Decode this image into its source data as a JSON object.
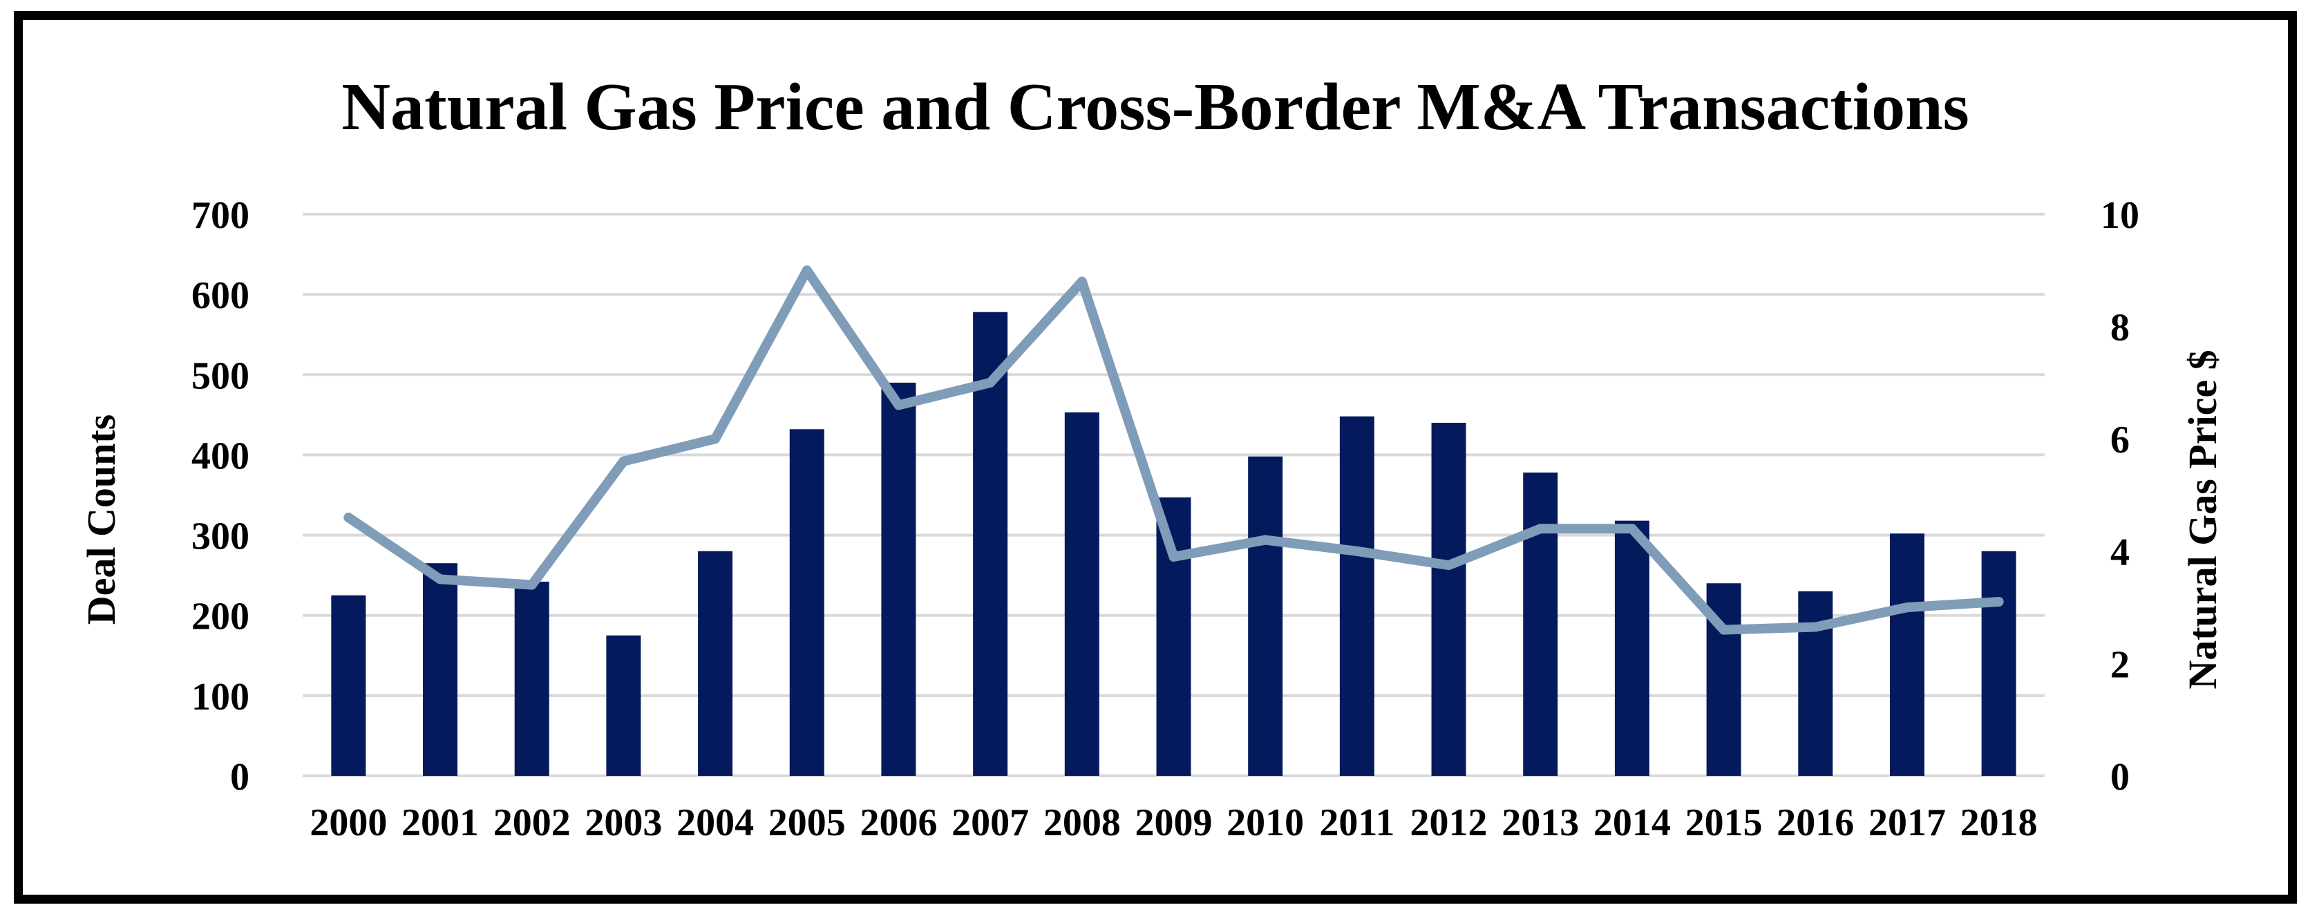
{
  "chart_data": {
    "type": "bar",
    "title": "Natural Gas Price and Cross-Border M&A Transactions",
    "categories": [
      "2000",
      "2001",
      "2002",
      "2003",
      "2004",
      "2005",
      "2006",
      "2007",
      "2008",
      "2009",
      "2010",
      "2011",
      "2012",
      "2013",
      "2014",
      "2015",
      "2016",
      "2017",
      "2018"
    ],
    "series": [
      {
        "name": "Deal Counts",
        "type": "bar",
        "axis": "left",
        "values": [
          225,
          265,
          242,
          175,
          280,
          432,
          490,
          578,
          453,
          347,
          398,
          448,
          440,
          378,
          318,
          240,
          230,
          302,
          280
        ]
      },
      {
        "name": "Natural Gas Price $",
        "type": "line",
        "axis": "right",
        "values": [
          4.6,
          3.5,
          3.4,
          5.6,
          6.0,
          9.0,
          6.6,
          7.0,
          8.8,
          3.9,
          4.2,
          4.0,
          3.75,
          4.4,
          4.4,
          2.6,
          2.65,
          3.0,
          3.1
        ]
      }
    ],
    "ylabel": "Deal Counts",
    "y2label": "Natural Gas Price $",
    "ylim": [
      0,
      700
    ],
    "y2lim": [
      0,
      10
    ],
    "yticks": [
      "0",
      "100",
      "200",
      "300",
      "400",
      "500",
      "600",
      "700"
    ],
    "y2ticks": [
      "0",
      "2",
      "4",
      "6",
      "8",
      "10"
    ],
    "grid": true,
    "colors": {
      "bar": "#041a5c",
      "line": "#7f9cb8",
      "grid": "#d9d9d9"
    }
  }
}
